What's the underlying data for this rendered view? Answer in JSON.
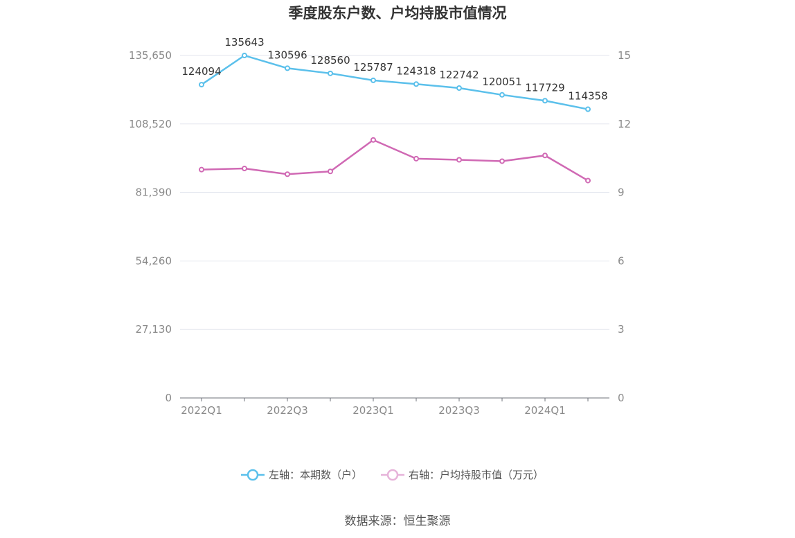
{
  "chart_data": {
    "type": "line",
    "title": "季度股东户数、户均持股市值情况",
    "categories": [
      "2022Q1",
      "2022Q2",
      "2022Q3",
      "2022Q4",
      "2023Q1",
      "2023Q2",
      "2023Q3",
      "2023Q4",
      "2024Q1",
      "2024Q2"
    ],
    "x_tick_labels": [
      "2022Q1",
      "2022Q3",
      "2023Q1",
      "2023Q3",
      "2024Q1"
    ],
    "left_axis": {
      "ylim": [
        0,
        135650
      ],
      "ticks": [
        "0",
        "27,130",
        "54,260",
        "81,390",
        "108,520",
        "135,650"
      ]
    },
    "right_axis": {
      "ylim": [
        0,
        15
      ],
      "ticks": [
        "0",
        "3",
        "6",
        "9",
        "12",
        "15"
      ]
    },
    "series": [
      {
        "name": "左轴：本期数（户）",
        "axis": "left",
        "color": "#5bc0eb",
        "values": [
          124094,
          135643,
          130596,
          128560,
          125787,
          124318,
          122742,
          120051,
          117729,
          114358
        ],
        "labels": [
          "124094",
          "135643",
          "130596",
          "128560",
          "125787",
          "124318",
          "122742",
          "120051",
          "117729",
          "114358"
        ]
      },
      {
        "name": "右轴：户均持股市值（万元）",
        "axis": "right",
        "color": "#d069b4",
        "values": [
          10.0,
          10.05,
          9.8,
          9.92,
          11.3,
          10.48,
          10.43,
          10.37,
          10.62,
          9.52
        ]
      }
    ],
    "grid": true,
    "legend": "bottom-center"
  },
  "source_text": "数据来源：恒生聚源"
}
